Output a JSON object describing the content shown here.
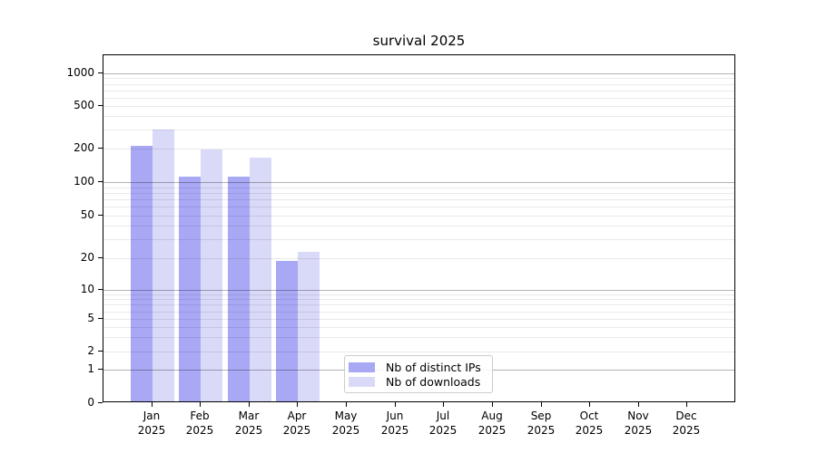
{
  "chart_data": {
    "type": "bar",
    "title": "survival 2025",
    "categories": [
      "Jan 2025",
      "Feb 2025",
      "Mar 2025",
      "Apr 2025",
      "May 2025",
      "Jun 2025",
      "Jul 2025",
      "Aug 2025",
      "Sep 2025",
      "Oct 2025",
      "Nov 2025",
      "Dec 2025"
    ],
    "series": [
      {
        "name": "Nb of distinct IPs",
        "color": "#a8a8f5",
        "values": [
          210,
          112,
          112,
          19,
          0,
          0,
          0,
          0,
          0,
          0,
          0,
          0
        ]
      },
      {
        "name": "Nb of downloads",
        "color": "#d9d9f8",
        "values": [
          300,
          197,
          165,
          23,
          0,
          0,
          0,
          0,
          0,
          0,
          0,
          0
        ]
      }
    ],
    "xlabel": "",
    "ylabel": "",
    "yaxis": {
      "scale": "symlog",
      "ticks": [
        0,
        1,
        2,
        5,
        10,
        20,
        50,
        100,
        200,
        500,
        1000
      ],
      "top_value": 1400
    },
    "grid": {
      "major": true,
      "minor": true
    },
    "legend_position": "lower center"
  },
  "colors": {
    "bar_ips": "#a8a8f5",
    "bar_downloads": "#d9d9f8",
    "major_grid": "#b2b2b2",
    "minor_grid": "#e9e9e9",
    "spine": "#000000",
    "background": "#ffffff"
  }
}
